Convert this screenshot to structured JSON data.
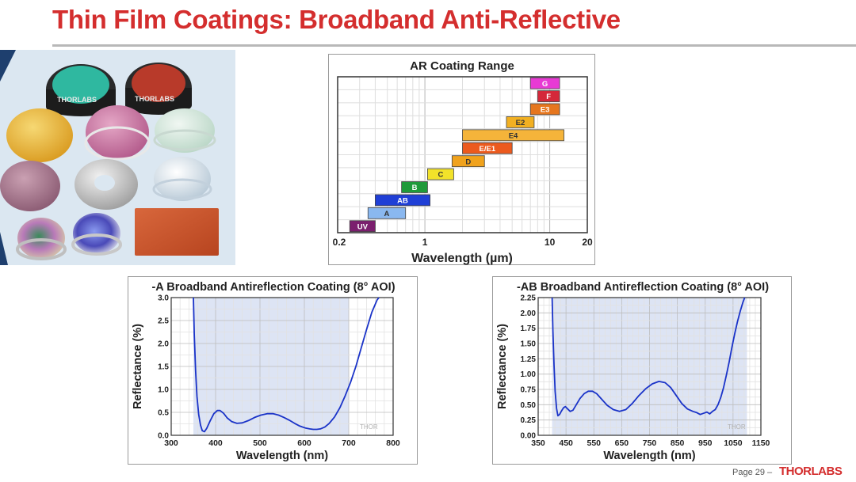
{
  "slide": {
    "title": "Thin Film Coatings: Broadband Anti-Reflective",
    "page_label": "Page 29 –",
    "brand": "THORLABS"
  },
  "photo": {
    "filter_brand": "THORLABS",
    "colors": {
      "teal": "#2fb8a0",
      "red": "#b83a2a",
      "amber": "#e9b43a",
      "pink": "#c9739c",
      "mint": "#cfe3d8",
      "mauve": "#a7748a",
      "silver": "#c9c9c9",
      "clear": "#dfe8ef",
      "rust": "#c8552e"
    }
  },
  "chart_data": [
    {
      "type": "bar",
      "title": "AR Coating Range",
      "xlabel": "Wavelength (µm)",
      "xscale": "log",
      "xlim": [
        0.2,
        20
      ],
      "x_ticks": [
        "0.2",
        "1",
        "10",
        "20"
      ],
      "bars": [
        {
          "label": "UV",
          "x0": 0.25,
          "x1": 0.4,
          "color": "#7b1f6e"
        },
        {
          "label": "A",
          "x0": 0.35,
          "x1": 0.7,
          "color": "#8ab8f0"
        },
        {
          "label": "AB",
          "x0": 0.4,
          "x1": 1.1,
          "color": "#1f3fd6"
        },
        {
          "label": "B",
          "x0": 0.65,
          "x1": 1.05,
          "color": "#1f9a3a"
        },
        {
          "label": "C",
          "x0": 1.05,
          "x1": 1.7,
          "color": "#f2e22a"
        },
        {
          "label": "D",
          "x0": 1.65,
          "x1": 3.0,
          "color": "#f0a21c"
        },
        {
          "label": "E/E1",
          "x0": 2.0,
          "x1": 5.0,
          "color": "#ec5a1e"
        },
        {
          "label": "E4",
          "x0": 2.0,
          "x1": 13.0,
          "color": "#f5b43a"
        },
        {
          "label": "E2",
          "x0": 4.5,
          "x1": 7.5,
          "color": "#f2b022"
        },
        {
          "label": "E3",
          "x0": 7.0,
          "x1": 12.0,
          "color": "#e6761e"
        },
        {
          "label": "F",
          "x0": 8.0,
          "x1": 12.0,
          "color": "#d4283a"
        },
        {
          "label": "G",
          "x0": 7.0,
          "x1": 12.0,
          "color": "#e83ad4"
        }
      ]
    },
    {
      "type": "line",
      "title": "-A Broadband Antireflection Coating (8° AOI)",
      "xlabel": "Wavelength (nm)",
      "ylabel": "Reflectance (%)",
      "xlim": [
        300,
        800
      ],
      "ylim": [
        0,
        3.0
      ],
      "x_ticks": [
        "300",
        "400",
        "500",
        "600",
        "700",
        "800"
      ],
      "y_ticks": [
        "0.0",
        "0.5",
        "1.0",
        "1.5",
        "2.0",
        "2.5",
        "3.0"
      ],
      "shaded_band": [
        350,
        700
      ],
      "watermark": "THOR",
      "series": [
        {
          "name": "-A",
          "color": "#1a33c8",
          "x": [
            350,
            352,
            355,
            358,
            362,
            366,
            370,
            375,
            380,
            388,
            396,
            404,
            410,
            418,
            426,
            436,
            448,
            460,
            474,
            488,
            502,
            516,
            530,
            542,
            554,
            566,
            578,
            590,
            602,
            612,
            620,
            628,
            636,
            646,
            656,
            668,
            680,
            692,
            704,
            716,
            728,
            740,
            752,
            764,
            768
          ],
          "y": [
            3.0,
            2.2,
            1.4,
            0.85,
            0.45,
            0.22,
            0.1,
            0.08,
            0.15,
            0.32,
            0.47,
            0.54,
            0.54,
            0.48,
            0.38,
            0.3,
            0.26,
            0.27,
            0.32,
            0.39,
            0.44,
            0.47,
            0.47,
            0.44,
            0.39,
            0.33,
            0.26,
            0.2,
            0.16,
            0.14,
            0.13,
            0.13,
            0.14,
            0.18,
            0.26,
            0.4,
            0.6,
            0.86,
            1.15,
            1.5,
            1.9,
            2.3,
            2.68,
            2.95,
            3.0
          ]
        }
      ]
    },
    {
      "type": "line",
      "title": "-AB Broadband Antireflection Coating (8° AOI)",
      "xlabel": "Wavelength (nm)",
      "ylabel": "Reflectance (%)",
      "xlim": [
        350,
        1150
      ],
      "ylim": [
        0,
        2.25
      ],
      "x_ticks": [
        "350",
        "450",
        "550",
        "650",
        "750",
        "850",
        "950",
        "1050",
        "1150"
      ],
      "y_ticks": [
        "0.00",
        "0.25",
        "0.50",
        "0.75",
        "1.00",
        "1.25",
        "1.50",
        "1.75",
        "2.00",
        "2.25"
      ],
      "shaded_band": [
        400,
        1100
      ],
      "watermark": "THOR",
      "series": [
        {
          "name": "-AB",
          "color": "#1a33c8",
          "x": [
            400,
            403,
            407,
            411,
            416,
            421,
            427,
            434,
            441,
            448,
            456,
            465,
            475,
            487,
            500,
            515,
            530,
            545,
            560,
            578,
            598,
            620,
            642,
            665,
            688,
            712,
            736,
            760,
            784,
            806,
            826,
            846,
            866,
            886,
            906,
            920,
            932,
            944,
            956,
            966,
            976,
            986,
            996,
            1006,
            1016,
            1026,
            1036,
            1046,
            1056,
            1066,
            1076,
            1086,
            1092
          ],
          "y": [
            2.25,
            1.7,
            1.15,
            0.72,
            0.44,
            0.32,
            0.34,
            0.4,
            0.45,
            0.47,
            0.43,
            0.39,
            0.41,
            0.5,
            0.6,
            0.68,
            0.72,
            0.72,
            0.68,
            0.59,
            0.49,
            0.42,
            0.39,
            0.42,
            0.52,
            0.65,
            0.76,
            0.84,
            0.88,
            0.86,
            0.78,
            0.65,
            0.52,
            0.43,
            0.39,
            0.37,
            0.34,
            0.36,
            0.38,
            0.35,
            0.39,
            0.42,
            0.5,
            0.62,
            0.78,
            0.98,
            1.2,
            1.44,
            1.66,
            1.86,
            2.03,
            2.18,
            2.25
          ]
        }
      ]
    }
  ]
}
